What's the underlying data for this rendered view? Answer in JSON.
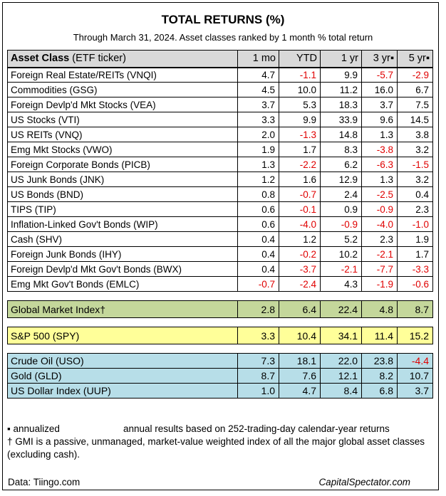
{
  "chart_data": {
    "type": "table",
    "title": "TOTAL RETURNS (%)",
    "subtitle": "Through March 31, 2024. Asset classes ranked by 1 month % total return",
    "header": {
      "asset_bold": "Asset Class",
      "asset_rest": " (ETF ticker)",
      "columns": [
        "1 mo",
        "YTD",
        "1 yr",
        "3 yr▪",
        "5 yr▪"
      ]
    },
    "asset_rows": [
      {
        "name": "Foreign Real Estate/REITs (VNQI)",
        "values": [
          "4.7",
          "-1.1",
          "9.9",
          "-5.7",
          "-2.9"
        ]
      },
      {
        "name": "Commodities (GSG)",
        "values": [
          "4.5",
          "10.0",
          "11.2",
          "16.0",
          "6.7"
        ]
      },
      {
        "name": "Foreign Devlp'd Mkt Stocks (VEA)",
        "values": [
          "3.7",
          "5.3",
          "18.3",
          "3.7",
          "7.5"
        ]
      },
      {
        "name": "US Stocks (VTI)",
        "values": [
          "3.3",
          "9.9",
          "33.9",
          "9.6",
          "14.5"
        ]
      },
      {
        "name": "US REITs (VNQ)",
        "values": [
          "2.0",
          "-1.3",
          "14.8",
          "1.3",
          "3.8"
        ]
      },
      {
        "name": "Emg Mkt Stocks (VWO)",
        "values": [
          "1.9",
          "1.7",
          "8.3",
          "-3.8",
          "3.2"
        ]
      },
      {
        "name": "Foreign Corporate Bonds (PICB)",
        "values": [
          "1.3",
          "-2.2",
          "6.2",
          "-6.3",
          "-1.5"
        ]
      },
      {
        "name": "US Junk Bonds (JNK)",
        "values": [
          "1.2",
          "1.6",
          "12.9",
          "1.3",
          "3.2"
        ]
      },
      {
        "name": "US Bonds (BND)",
        "values": [
          "0.8",
          "-0.7",
          "2.4",
          "-2.5",
          "0.4"
        ]
      },
      {
        "name": "TIPS (TIP)",
        "values": [
          "0.6",
          "-0.1",
          "0.9",
          "-0.9",
          "2.3"
        ]
      },
      {
        "name": "Inflation-Linked Gov't Bonds (WIP)",
        "values": [
          "0.6",
          "-4.0",
          "-0.9",
          "-4.0",
          "-1.0"
        ]
      },
      {
        "name": "Cash (SHV)",
        "values": [
          "0.4",
          "1.2",
          "5.2",
          "2.3",
          "1.9"
        ]
      },
      {
        "name": "Foreign Junk Bonds (IHY)",
        "values": [
          "0.4",
          "-0.2",
          "10.2",
          "-2.1",
          "1.7"
        ]
      },
      {
        "name": "Foreign Devlp'd Mkt Gov't Bonds (BWX)",
        "values": [
          "0.4",
          "-3.7",
          "-2.1",
          "-7.7",
          "-3.3"
        ]
      },
      {
        "name": "Emg Mkt Gov't Bonds (EMLC)",
        "values": [
          "-0.7",
          "-2.4",
          "4.3",
          "-1.9",
          "-0.6"
        ]
      }
    ],
    "gmi_row": {
      "name": "Global Market Index†",
      "values": [
        "2.8",
        "6.4",
        "22.4",
        "4.8",
        "8.7"
      ]
    },
    "spy_row": {
      "name": "S&P 500 (SPY)",
      "values": [
        "3.3",
        "10.4",
        "34.1",
        "11.4",
        "15.2"
      ]
    },
    "commodity_rows": [
      {
        "name": "Crude Oil (USO)",
        "values": [
          "7.3",
          "18.1",
          "22.0",
          "23.8",
          "-4.4"
        ]
      },
      {
        "name": "Gold (GLD)",
        "values": [
          "8.7",
          "7.6",
          "12.1",
          "8.2",
          "10.7"
        ]
      },
      {
        "name": "US Dollar Index (UUP)",
        "values": [
          "1.0",
          "4.7",
          "8.4",
          "6.8",
          "3.7"
        ]
      }
    ],
    "colors": {
      "negative": "#e00000",
      "header": "#d9d9d9",
      "gmi": "#c4d79b",
      "spy": "#ffff99",
      "commodities": "#b7dee8"
    }
  },
  "notes": {
    "annualized_label": "▪ annualized",
    "annual_results": "annual results based on 252-trading-day calendar-year returns",
    "gmi_note": "† GMI is a passive, unmanaged, market-value weighted index of all the major global asset classes (excluding cash)."
  },
  "footer": {
    "source": "Data: Tiingo.com",
    "brand": "CapitalSpectator.com"
  }
}
